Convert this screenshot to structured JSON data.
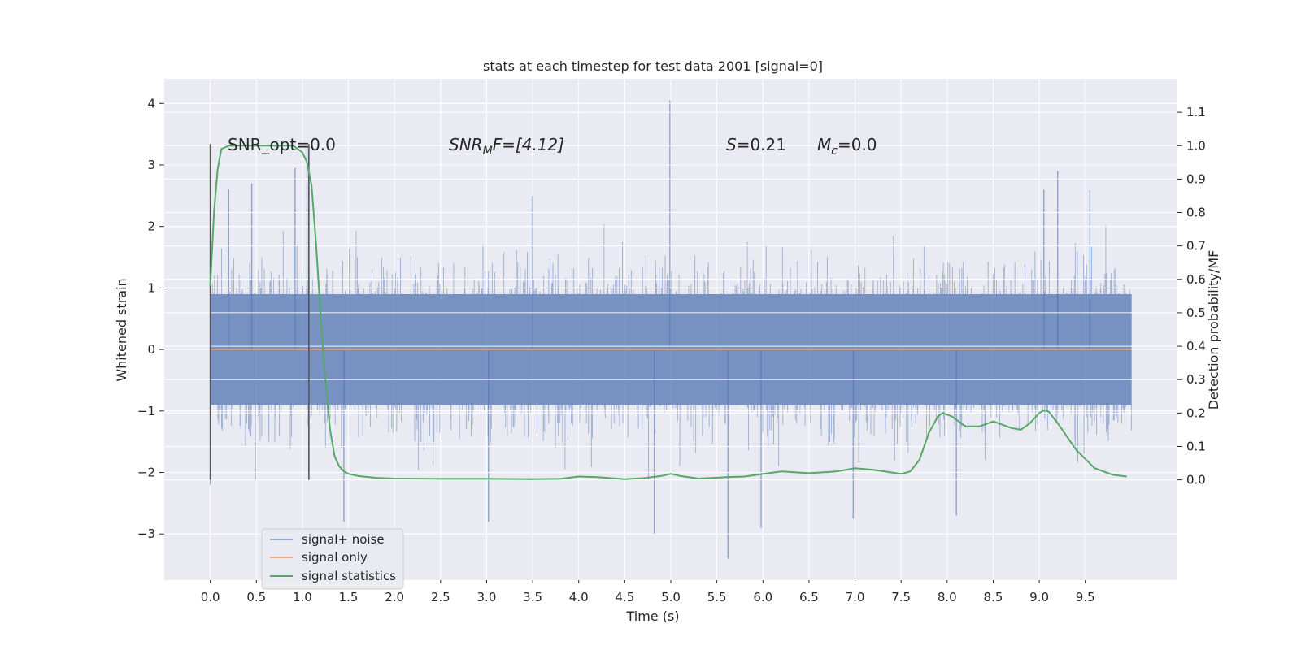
{
  "chart_data": {
    "type": "line",
    "title": "stats at each timestep for test data 2001 [signal=0]",
    "xlabel": "Time (s)",
    "ylabel": "Whitened strain",
    "y2label": "Detection probability/MF",
    "xlim": [
      -0.5,
      10.5
    ],
    "ylim": [
      -3.75,
      4.4
    ],
    "y2lim": [
      -0.3,
      1.2
    ],
    "x_ticks": [
      0.0,
      0.5,
      1.0,
      1.5,
      2.0,
      2.5,
      3.0,
      3.5,
      4.0,
      4.5,
      5.0,
      5.5,
      6.0,
      6.5,
      7.0,
      7.5,
      8.0,
      8.5,
      9.0,
      9.5
    ],
    "x_tick_labels": [
      "0.0",
      "0.5",
      "1.0",
      "1.5",
      "2.0",
      "2.5",
      "3.0",
      "3.5",
      "4.0",
      "4.5",
      "5.0",
      "5.5",
      "6.0",
      "6.5",
      "7.0",
      "7.5",
      "8.0",
      "8.5",
      "9.0",
      "9.5"
    ],
    "y_ticks": [
      4,
      3,
      2,
      1,
      0,
      -1,
      -2,
      -3
    ],
    "y_tick_labels": [
      "4",
      "3",
      "2",
      "1",
      "0",
      "−1",
      "−2",
      "−3"
    ],
    "y2_ticks": [
      1.1,
      1.0,
      0.9,
      0.8,
      0.7,
      0.6,
      0.5,
      0.4,
      0.3,
      0.2,
      0.1,
      0.0
    ],
    "y2_tick_labels": [
      "1.1",
      "1.0",
      "0.9",
      "0.8",
      "0.7",
      "0.6",
      "0.5",
      "0.4",
      "0.3",
      "0.2",
      "0.1",
      "0.0"
    ],
    "grid": true,
    "legend_position": "lower-left",
    "colors": {
      "background": "#eaeaf2",
      "grid": "#ffffff",
      "noise": "#4c72b0",
      "signal": "#dd8452",
      "stats": "#55a868",
      "vline": "#555555"
    },
    "annotations": {
      "snr_opt": "SNR_opt=0.0",
      "snr_mf_base": "SNR",
      "snr_mf_sub": "M",
      "snr_mf_rest": "F=[4.12]",
      "s_label": "S",
      "s_value": "=0.21",
      "mc_base": "M",
      "mc_sub": "c",
      "mc_value": "=0.0"
    },
    "vertical_lines": [
      0.0,
      1.07
    ],
    "series": [
      {
        "name": "signal+ noise",
        "axis": "left",
        "description_envelope": {
          "x_range": [
            0.0,
            10.0
          ],
          "typical_range": [
            -0.9,
            0.9
          ],
          "max_spikes": [
            {
              "x": 0.0,
              "y": 1.8
            },
            {
              "x": 0.2,
              "y": 2.6
            },
            {
              "x": 0.45,
              "y": 2.7
            },
            {
              "x": 0.92,
              "y": 2.95
            },
            {
              "x": 1.05,
              "y": 3.3
            },
            {
              "x": 3.5,
              "y": 2.5
            },
            {
              "x": 4.99,
              "y": 4.05
            },
            {
              "x": 9.05,
              "y": 2.6
            },
            {
              "x": 9.2,
              "y": 2.9
            },
            {
              "x": 9.55,
              "y": 2.6
            }
          ],
          "min_spikes": [
            {
              "x": 0.0,
              "y": -2.2
            },
            {
              "x": 1.45,
              "y": -2.8
            },
            {
              "x": 3.02,
              "y": -2.8
            },
            {
              "x": 4.82,
              "y": -3.0
            },
            {
              "x": 5.62,
              "y": -3.4
            },
            {
              "x": 5.98,
              "y": -2.9
            },
            {
              "x": 6.98,
              "y": -2.75
            },
            {
              "x": 8.1,
              "y": -2.7
            }
          ]
        }
      },
      {
        "name": "signal only",
        "axis": "left",
        "x": [
          0.0,
          10.0
        ],
        "y": [
          0.0,
          0.0
        ]
      },
      {
        "name": "signal statistics",
        "axis": "right",
        "x": [
          0.0,
          0.04,
          0.08,
          0.12,
          0.2,
          0.3,
          0.5,
          0.7,
          0.9,
          1.0,
          1.05,
          1.1,
          1.15,
          1.2,
          1.25,
          1.3,
          1.35,
          1.4,
          1.45,
          1.5,
          1.6,
          1.8,
          2.0,
          2.5,
          3.0,
          3.5,
          3.8,
          4.0,
          4.2,
          4.5,
          4.7,
          4.9,
          5.0,
          5.1,
          5.3,
          5.6,
          5.8,
          6.0,
          6.2,
          6.5,
          6.8,
          7.0,
          7.2,
          7.5,
          7.6,
          7.7,
          7.8,
          7.9,
          7.95,
          8.05,
          8.2,
          8.35,
          8.5,
          8.7,
          8.8,
          8.9,
          9.0,
          9.05,
          9.1,
          9.2,
          9.4,
          9.6,
          9.8,
          9.95
        ],
        "y": [
          0.58,
          0.8,
          0.93,
          0.99,
          1.0,
          1.0,
          1.0,
          1.0,
          1.0,
          0.98,
          0.95,
          0.88,
          0.7,
          0.48,
          0.3,
          0.15,
          0.07,
          0.04,
          0.025,
          0.018,
          0.012,
          0.006,
          0.004,
          0.003,
          0.003,
          0.002,
          0.003,
          0.01,
          0.008,
          0.002,
          0.005,
          0.012,
          0.018,
          0.012,
          0.004,
          0.008,
          0.01,
          0.018,
          0.025,
          0.02,
          0.025,
          0.035,
          0.03,
          0.018,
          0.025,
          0.06,
          0.14,
          0.19,
          0.2,
          0.19,
          0.16,
          0.16,
          0.175,
          0.155,
          0.15,
          0.17,
          0.2,
          0.208,
          0.205,
          0.17,
          0.09,
          0.035,
          0.015,
          0.01
        ]
      }
    ]
  }
}
